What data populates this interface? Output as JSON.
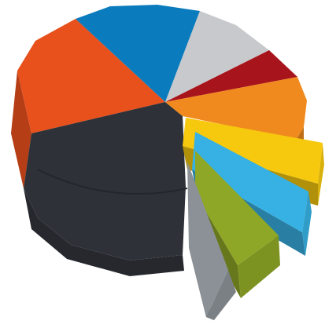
{
  "chart_data": {
    "type": "pie",
    "style": "3d-exploded",
    "title": "",
    "legend": "none",
    "data_labels": "none",
    "slices": [
      {
        "color": "#0a7bbd",
        "share_pct": 14
      },
      {
        "color": "#c7c9cc",
        "share_pct": 7
      },
      {
        "color": "#a8141b",
        "share_pct": 6
      },
      {
        "color": "#f08a1e",
        "share_pct": 6
      },
      {
        "color": "#f6c90e",
        "share_pct": 5,
        "exploded": true
      },
      {
        "color": "#37b1e3",
        "share_pct": 5,
        "exploded": true
      },
      {
        "color": "#8ea726",
        "share_pct": 5,
        "exploded": true
      },
      {
        "color": "#8c9197",
        "share_pct": 5,
        "exploded": true
      },
      {
        "color": "#2e3138",
        "share_pct": 25
      },
      {
        "color": "#e8501c",
        "share_pct": 22
      }
    ]
  }
}
